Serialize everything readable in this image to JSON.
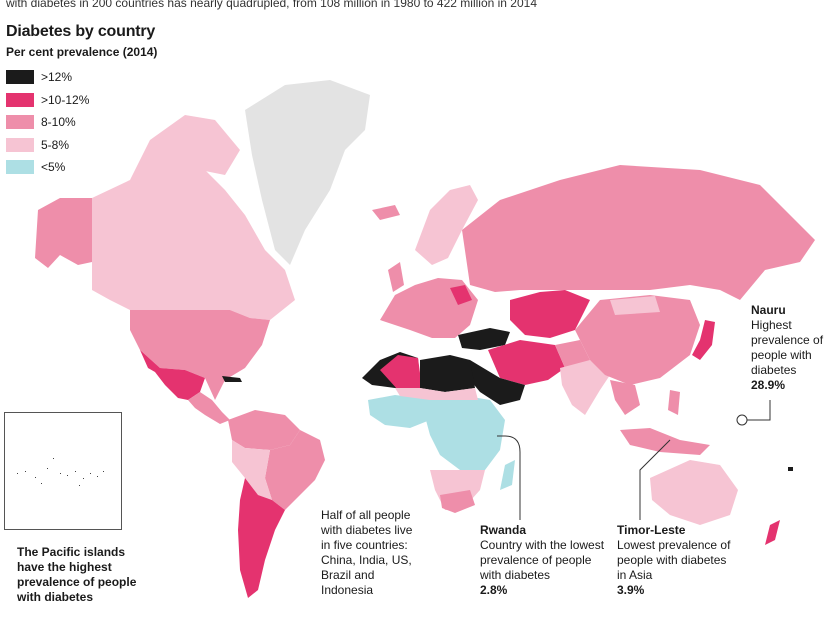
{
  "intro_text": "with diabetes in 200 countries has nearly quadrupled, from 108 million in 1980 to 422 million in 2014",
  "title": "Diabetes by country",
  "subtitle": "Per cent prevalence (2014)",
  "legend": [
    {
      "label": ">12%",
      "color": "#1b1b1b"
    },
    {
      "label": ">10-12%",
      "color": "#e4336f"
    },
    {
      "label": "8-10%",
      "color": "#ee8eaa"
    },
    {
      "label": "5-8%",
      "color": "#f6c4d3"
    },
    {
      "label": "<5%",
      "color": "#addfe4"
    }
  ],
  "no_data_color": "#e3e3e3",
  "annotations": {
    "nauru": {
      "title": "Nauru",
      "text": "Highest prevalence of people with diabetes",
      "value": "28.9%"
    },
    "rwanda": {
      "title": "Rwanda",
      "text": "Country with the lowest prevalence of people with diabetes",
      "value": "2.8%"
    },
    "timor": {
      "title": "Timor-Leste",
      "text": "Lowest prevalence of people with diabetes in Asia",
      "value": "3.9%"
    },
    "half": {
      "text": "Half of all people with diabetes live in five countries: China, India, US, Brazil and Indonesia"
    },
    "pacific": {
      "text": "The Pacific islands have the highest prevalence of people with diabetes"
    }
  }
}
